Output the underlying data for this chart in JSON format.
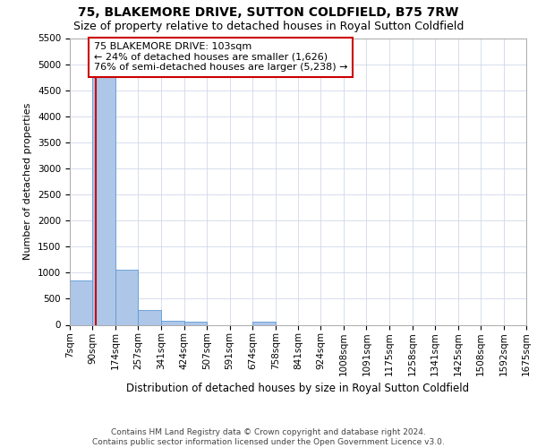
{
  "title": "75, BLAKEMORE DRIVE, SUTTON COLDFIELD, B75 7RW",
  "subtitle": "Size of property relative to detached houses in Royal Sutton Coldfield",
  "xlabel": "Distribution of detached houses by size in Royal Sutton Coldfield",
  "ylabel": "Number of detached properties",
  "footer_line1": "Contains HM Land Registry data © Crown copyright and database right 2024.",
  "footer_line2": "Contains public sector information licensed under the Open Government Licence v3.0.",
  "bin_edges": [
    7,
    90,
    174,
    257,
    341,
    424,
    507,
    591,
    674,
    758,
    841,
    924,
    1008,
    1091,
    1175,
    1258,
    1341,
    1425,
    1508,
    1592,
    1675
  ],
  "bin_labels": [
    "7sqm",
    "90sqm",
    "174sqm",
    "257sqm",
    "341sqm",
    "424sqm",
    "507sqm",
    "591sqm",
    "674sqm",
    "758sqm",
    "841sqm",
    "924sqm",
    "1008sqm",
    "1091sqm",
    "1175sqm",
    "1258sqm",
    "1341sqm",
    "1425sqm",
    "1508sqm",
    "1592sqm",
    "1675sqm"
  ],
  "bar_heights": [
    850,
    5100,
    1060,
    290,
    85,
    65,
    0,
    0,
    60,
    0,
    0,
    0,
    0,
    0,
    0,
    0,
    0,
    0,
    0,
    0
  ],
  "bar_color": "#aec6e8",
  "bar_edge_color": "#5b9bd5",
  "property_size": 103,
  "red_line_color": "#cc0000",
  "annotation_line1": "75 BLAKEMORE DRIVE: 103sqm",
  "annotation_line2": "← 24% of detached houses are smaller (1,626)",
  "annotation_line3": "76% of semi-detached houses are larger (5,238) →",
  "annotation_box_color": "#ffffff",
  "annotation_box_edge": "#cc0000",
  "ylim": [
    0,
    5500
  ],
  "yticks": [
    0,
    500,
    1000,
    1500,
    2000,
    2500,
    3000,
    3500,
    4000,
    4500,
    5000,
    5500
  ],
  "title_fontsize": 10,
  "subtitle_fontsize": 9,
  "ylabel_fontsize": 8,
  "xlabel_fontsize": 8.5,
  "tick_fontsize": 7.5,
  "annotation_fontsize": 8,
  "footer_fontsize": 6.5,
  "background_color": "#ffffff",
  "grid_color": "#d0d8e8"
}
